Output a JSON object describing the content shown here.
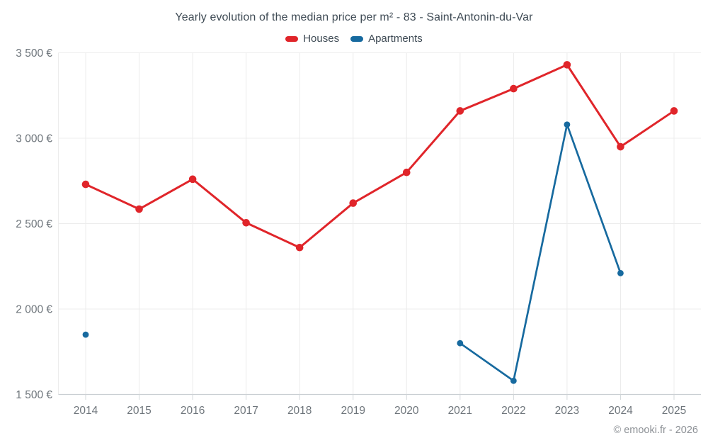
{
  "title": "Yearly evolution of the median price per m² - 83 - Saint-Antonin-du-Var",
  "footer": "© emooki.fr - 2026",
  "chart_data": {
    "type": "line",
    "title": "Yearly evolution of the median price per m² - 83 - Saint-Antonin-du-Var",
    "categories": [
      "2014",
      "2015",
      "2016",
      "2017",
      "2018",
      "2019",
      "2020",
      "2021",
      "2022",
      "2023",
      "2024",
      "2025"
    ],
    "series": [
      {
        "name": "Houses",
        "color": "#e0252a",
        "values": [
          2730,
          2585,
          2760,
          2505,
          2360,
          2620,
          2800,
          3160,
          3290,
          3430,
          2950,
          3160
        ]
      },
      {
        "name": "Apartments",
        "color": "#176a9f",
        "values": [
          1850,
          null,
          null,
          null,
          null,
          null,
          null,
          1800,
          1580,
          3080,
          2210,
          null
        ]
      }
    ],
    "xlabel": "",
    "ylabel": "",
    "ylim": [
      1500,
      3500
    ],
    "yticks": [
      1500,
      2000,
      2500,
      3000,
      3500
    ],
    "ytick_labels": [
      "1 500 €",
      "2 000 €",
      "2 500 €",
      "3 000 €",
      "3 500 €"
    ],
    "grid": true,
    "legend_position": "top"
  }
}
